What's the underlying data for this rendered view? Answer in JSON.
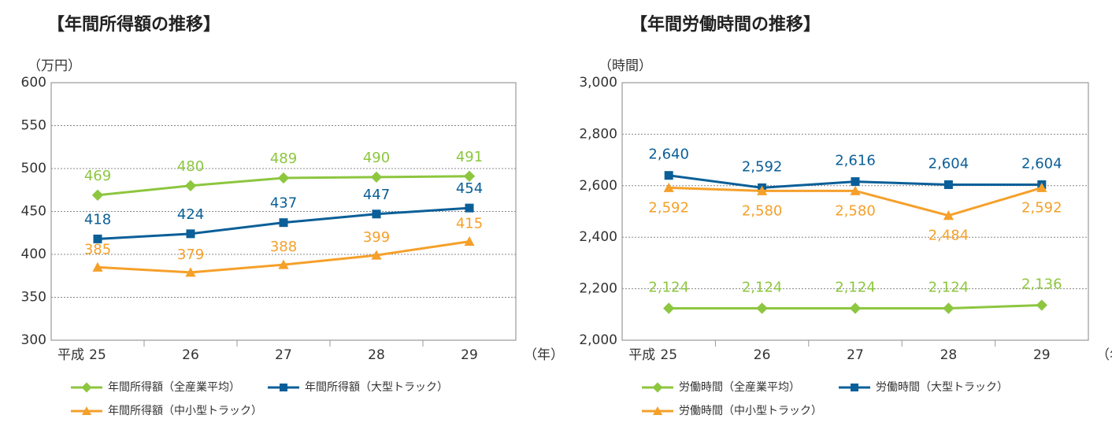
{
  "chart_data": [
    {
      "type": "line",
      "title": "【年間所得額の推移】",
      "y_unit": "（万円）",
      "era_label": "平成",
      "x_unit": "（年）",
      "categories": [
        "25",
        "26",
        "27",
        "28",
        "29"
      ],
      "ylim": [
        300,
        600
      ],
      "yticks": [
        300,
        350,
        400,
        450,
        500,
        550,
        600
      ],
      "grid": true,
      "series": [
        {
          "name": "年間所得額（全産業平均）",
          "color": "#8dc63f",
          "marker": "diamond",
          "values": [
            469,
            480,
            489,
            490,
            491
          ]
        },
        {
          "name": "年間所得額（大型トラック）",
          "color": "#0a5f98",
          "marker": "square",
          "values": [
            418,
            424,
            437,
            447,
            454
          ]
        },
        {
          "name": "年間所得額（中小型トラック）",
          "color": "#f5a02a",
          "marker": "triangle",
          "values": [
            385,
            379,
            388,
            399,
            415
          ]
        }
      ]
    },
    {
      "type": "line",
      "title": "【年間労働時間の推移】",
      "y_unit": "（時間）",
      "era_label": "平成",
      "x_unit": "（年）",
      "categories": [
        "25",
        "26",
        "27",
        "28",
        "29"
      ],
      "ylim": [
        2000,
        3000
      ],
      "yticks": [
        {
          "value": 2000,
          "label": "2,000"
        },
        {
          "value": 2200,
          "label": "2,200"
        },
        {
          "value": 2400,
          "label": "2,400"
        },
        {
          "value": 2600,
          "label": "2,600"
        },
        {
          "value": 2800,
          "label": "2,800"
        },
        {
          "value": 3000,
          "label": "3,000"
        }
      ],
      "grid": true,
      "series": [
        {
          "name": "労働時間（全産業平均）",
          "color": "#8dc63f",
          "marker": "diamond",
          "values": [
            2124,
            2124,
            2124,
            2124,
            2136
          ],
          "value_labels": [
            "2,124",
            "2,124",
            "2,124",
            "2,124",
            "2,136"
          ]
        },
        {
          "name": "労働時間（大型トラック）",
          "color": "#0a5f98",
          "marker": "square",
          "values": [
            2640,
            2592,
            2616,
            2604,
            2604
          ],
          "value_labels": [
            "2,640",
            "2,592",
            "2,616",
            "2,604",
            "2,604"
          ]
        },
        {
          "name": "労働時間（中小型トラック）",
          "color": "#f5a02a",
          "marker": "triangle",
          "values": [
            2592,
            2580,
            2580,
            2484,
            2592
          ],
          "value_labels": [
            "2,592",
            "2,580",
            "2,580",
            "2,484",
            "2,592"
          ]
        }
      ]
    }
  ]
}
